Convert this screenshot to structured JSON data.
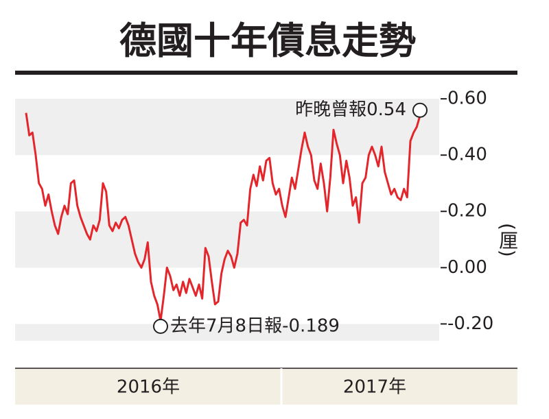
{
  "chart_data": {
    "type": "line",
    "title": "德國十年債息走勢",
    "y_axis_label": "(厘)",
    "x_labels": [
      "2016年",
      "2017年"
    ],
    "annotations": [
      {
        "text": "去年7月8日報-0.189",
        "index": 42
      },
      {
        "text": "昨晚曾報0.54",
        "index": 123
      }
    ],
    "series": [
      {
        "name": "德國十年債息",
        "color": "#e3262b",
        "values": [
          0.55,
          0.47,
          0.48,
          0.4,
          0.3,
          0.28,
          0.22,
          0.26,
          0.2,
          0.15,
          0.12,
          0.18,
          0.22,
          0.19,
          0.3,
          0.31,
          0.22,
          0.18,
          0.15,
          0.12,
          0.1,
          0.15,
          0.13,
          0.17,
          0.3,
          0.27,
          0.15,
          0.13,
          0.16,
          0.14,
          0.17,
          0.18,
          0.15,
          0.1,
          0.05,
          0.02,
          0.0,
          0.03,
          0.09,
          -0.05,
          -0.1,
          -0.13,
          -0.189,
          -0.1,
          0.0,
          -0.03,
          -0.08,
          -0.06,
          -0.1,
          -0.05,
          -0.09,
          -0.04,
          -0.07,
          -0.1,
          -0.06,
          -0.11,
          0.07,
          0.04,
          -0.05,
          -0.13,
          -0.12,
          -0.02,
          0.03,
          0.06,
          0.04,
          0.0,
          0.05,
          0.16,
          0.17,
          0.15,
          0.28,
          0.33,
          0.29,
          0.36,
          0.31,
          0.38,
          0.39,
          0.3,
          0.26,
          0.28,
          0.22,
          0.18,
          0.25,
          0.32,
          0.28,
          0.35,
          0.42,
          0.48,
          0.43,
          0.4,
          0.31,
          0.28,
          0.37,
          0.3,
          0.2,
          0.32,
          0.49,
          0.44,
          0.4,
          0.3,
          0.38,
          0.32,
          0.22,
          0.25,
          0.16,
          0.3,
          0.32,
          0.4,
          0.43,
          0.4,
          0.36,
          0.43,
          0.34,
          0.3,
          0.26,
          0.28,
          0.25,
          0.24,
          0.28,
          0.25,
          0.45,
          0.48,
          0.5,
          0.54
        ]
      }
    ],
    "ylim": [
      -0.26,
      0.61
    ],
    "yticks": [
      {
        "value": -0.2,
        "label": "-0.20"
      },
      {
        "value": 0,
        "label": "0.00"
      },
      {
        "value": 0.2,
        "label": "0.20"
      },
      {
        "value": 0.4,
        "label": "0.40"
      },
      {
        "value": 0.6,
        "label": "0.60"
      }
    ],
    "bands": true
  }
}
